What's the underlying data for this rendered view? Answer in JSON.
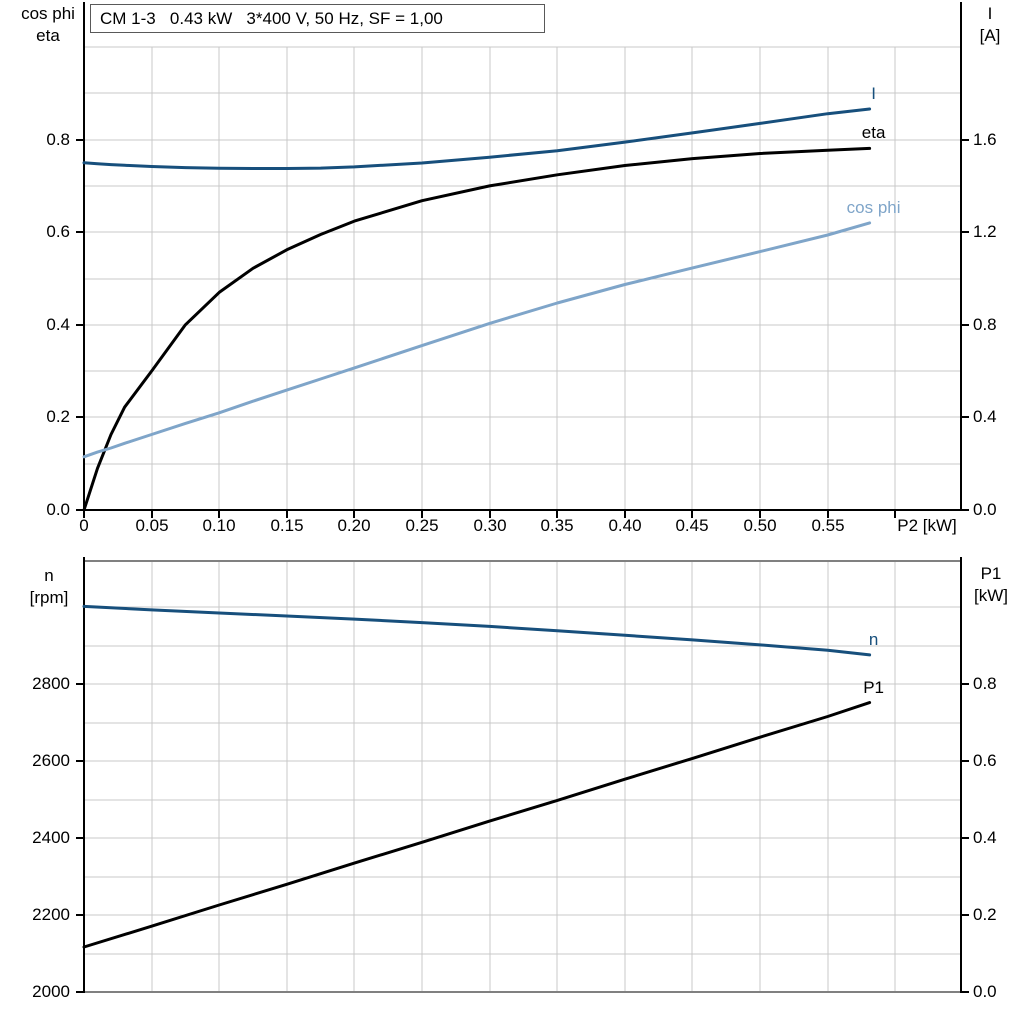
{
  "title_box": {
    "text": "CM 1-3   0.43 kW   3*400 V, 50 Hz, SF = 1,00"
  },
  "colors": {
    "dark_blue": "#174f7c",
    "light_blue": "#7fa5c9",
    "black": "#000000",
    "grid": "#c9c9c9",
    "panel_border": "#808080",
    "title_border": "#595959"
  },
  "chart_data": [
    {
      "type": "line",
      "title": "CM 1-3   0.43 kW   3*400 V, 50 Hz, SF = 1,00",
      "x_axis": {
        "label": "P2 [kW]",
        "lim": [
          0,
          0.6486
        ],
        "tick_values": [
          0,
          0.05,
          0.1,
          0.15,
          0.2,
          0.25,
          0.3,
          0.35,
          0.4,
          0.45,
          0.5,
          0.55
        ],
        "tick_labels": [
          "0",
          "0.05",
          "0.10",
          "0.15",
          "0.20",
          "0.25",
          "0.30",
          "0.35",
          "0.40",
          "0.45",
          "0.50",
          "0.55"
        ],
        "unlabeled_ticks": [
          0.6
        ],
        "grid": {
          "from": 0.05,
          "to": 0.6,
          "step": 0.05
        }
      },
      "left_axis": {
        "title_lines": [
          "cos phi",
          "eta"
        ],
        "lim": [
          0,
          1.0
        ],
        "tick_values": [
          0,
          0.2,
          0.4,
          0.6,
          0.8
        ],
        "tick_labels": [
          "0.0",
          "0.2",
          "0.4",
          "0.6",
          "0.8"
        ],
        "grid": {
          "from": 0.1,
          "to": 1.0,
          "step": 0.1
        }
      },
      "right_axis": {
        "title_lines": [
          "I",
          "[A]"
        ],
        "lim": [
          0,
          2.0
        ],
        "tick_values": [
          0,
          0.4,
          0.8,
          1.2,
          1.6
        ],
        "tick_labels": [
          "0.0",
          "0.4",
          "0.8",
          "1.2",
          "1.6"
        ]
      },
      "series": [
        {
          "name": "I",
          "axis": "right",
          "color": "dark_blue",
          "x": [
            0,
            0.01,
            0.02,
            0.03,
            0.05,
            0.075,
            0.1,
            0.125,
            0.15,
            0.175,
            0.2,
            0.25,
            0.3,
            0.35,
            0.4,
            0.45,
            0.5,
            0.55,
            0.581
          ],
          "y": [
            1.5,
            1.496,
            1.492,
            1.489,
            1.484,
            1.479,
            1.476,
            1.475,
            1.475,
            1.477,
            1.482,
            1.499,
            1.524,
            1.552,
            1.589,
            1.629,
            1.67,
            1.712,
            1.732
          ]
        },
        {
          "name": "eta",
          "axis": "left",
          "color": "black",
          "x": [
            0,
            0.01,
            0.02,
            0.03,
            0.05,
            0.075,
            0.1,
            0.125,
            0.15,
            0.175,
            0.2,
            0.25,
            0.3,
            0.35,
            0.4,
            0.45,
            0.5,
            0.55,
            0.581
          ],
          "y": [
            0,
            0.09,
            0.163,
            0.222,
            0.3,
            0.4,
            0.47,
            0.522,
            0.562,
            0.595,
            0.624,
            0.668,
            0.7,
            0.724,
            0.744,
            0.759,
            0.77,
            0.777,
            0.781
          ]
        },
        {
          "name": "cos phi",
          "axis": "left",
          "color": "light_blue",
          "x": [
            0,
            0.01,
            0.02,
            0.03,
            0.05,
            0.075,
            0.1,
            0.125,
            0.15,
            0.175,
            0.2,
            0.25,
            0.3,
            0.35,
            0.4,
            0.45,
            0.5,
            0.55,
            0.581
          ],
          "y": [
            0.115,
            0.125,
            0.134,
            0.144,
            0.163,
            0.187,
            0.21,
            0.235,
            0.259,
            0.283,
            0.307,
            0.355,
            0.403,
            0.447,
            0.487,
            0.523,
            0.558,
            0.594,
            0.62
          ]
        }
      ]
    },
    {
      "type": "line",
      "x_axis": {
        "label": null,
        "lim": [
          0,
          0.6486
        ],
        "tick_values": [],
        "tick_labels": [],
        "unlabeled_ticks": [],
        "grid": {
          "from": 0.05,
          "to": 0.6,
          "step": 0.05
        }
      },
      "left_axis": {
        "title_lines": [
          "n",
          "[rpm]"
        ],
        "lim": [
          2000,
          3120
        ],
        "tick_values": [
          2000,
          2200,
          2400,
          2600,
          2800
        ],
        "tick_labels": [
          "2000",
          "2200",
          "2400",
          "2600",
          "2800"
        ],
        "grid": {
          "from": 2100,
          "to": 3000,
          "step": 100
        }
      },
      "right_axis": {
        "title_lines": [
          "P1",
          "[kW]"
        ],
        "lim": [
          0,
          1.12
        ],
        "tick_values": [
          0,
          0.2,
          0.4,
          0.6,
          0.8
        ],
        "tick_labels": [
          "0.0",
          "0.2",
          "0.4",
          "0.6",
          "0.8"
        ]
      },
      "series": [
        {
          "name": "n",
          "axis": "left",
          "color": "dark_blue",
          "x": [
            0,
            0.05,
            0.1,
            0.15,
            0.2,
            0.25,
            0.3,
            0.35,
            0.4,
            0.45,
            0.5,
            0.55,
            0.581
          ],
          "y": [
            3002,
            2993,
            2985,
            2977,
            2969,
            2960,
            2950,
            2939,
            2927,
            2915,
            2902,
            2888,
            2876
          ]
        },
        {
          "name": "P1",
          "axis": "right",
          "color": "black",
          "x": [
            0,
            0.05,
            0.1,
            0.15,
            0.2,
            0.25,
            0.3,
            0.35,
            0.4,
            0.45,
            0.5,
            0.55,
            0.581
          ],
          "y": [
            0.117,
            0.171,
            0.226,
            0.28,
            0.335,
            0.389,
            0.444,
            0.498,
            0.553,
            0.607,
            0.662,
            0.716,
            0.752
          ]
        }
      ]
    }
  ]
}
